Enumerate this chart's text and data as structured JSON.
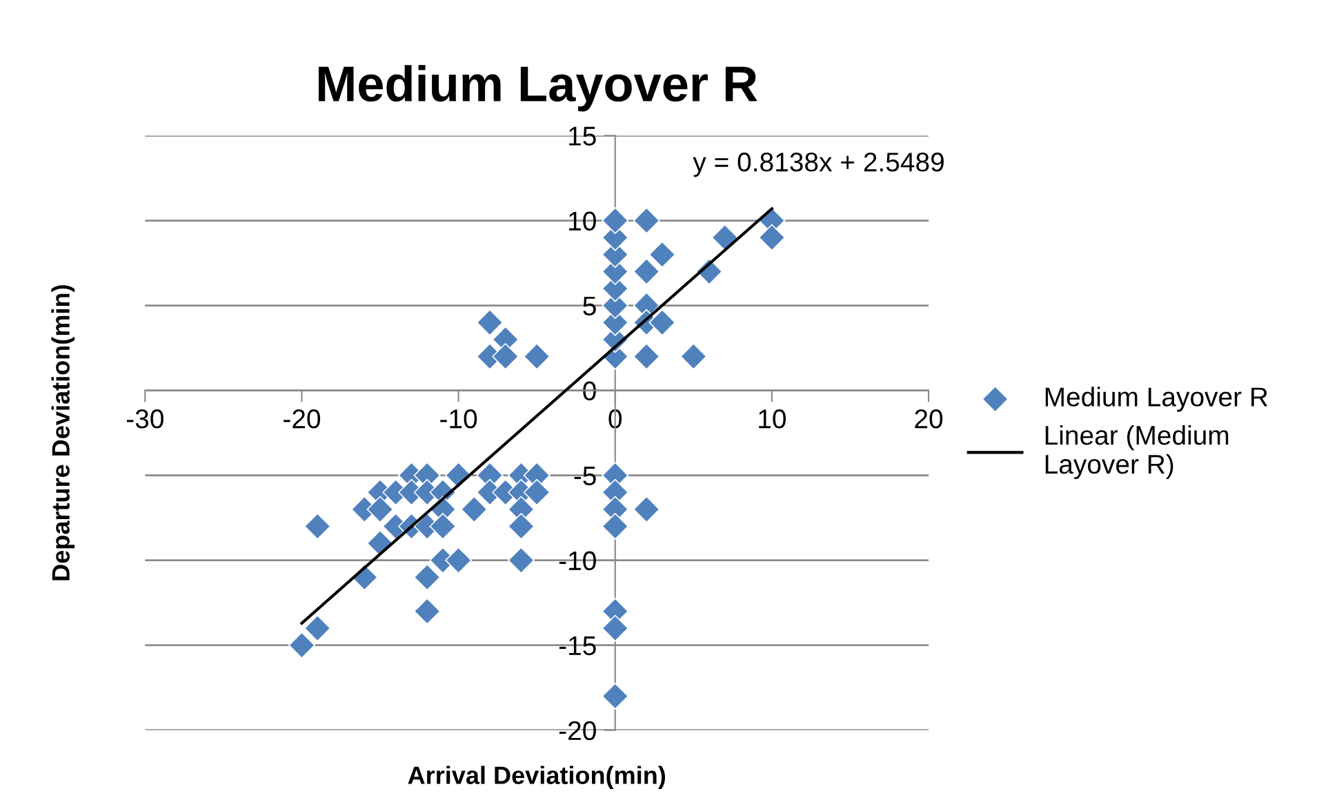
{
  "chart_data": {
    "type": "scatter",
    "title": "Medium Layover R",
    "xlabel": "Arrival Deviation(min)",
    "ylabel": "Departure Deviation(min)",
    "annotations": [
      "y = 0.8138x + 2.5489"
    ],
    "series": [
      {
        "name": "Medium Layover R",
        "color": "#4f81bd",
        "marker": "diamond",
        "x": [
          -20,
          -19,
          -19,
          -16,
          -16,
          -15,
          -15,
          -15,
          -14,
          -14,
          -13,
          -13,
          -13,
          -12,
          -12,
          -12,
          -12,
          -12,
          -11,
          -11,
          -11,
          -11,
          -10,
          -10,
          -9,
          -8,
          -8,
          -7,
          -6,
          -6,
          -6,
          -6,
          -6,
          -5,
          -5,
          0,
          0,
          0,
          0,
          0,
          0,
          0,
          2,
          -8,
          -7,
          -8,
          -7,
          -5,
          0,
          0,
          0,
          0,
          0,
          0,
          0,
          0,
          0,
          2,
          3,
          2,
          2,
          2,
          3,
          2,
          5,
          6,
          7,
          10,
          10
        ],
        "values": [
          -15,
          -14,
          -8,
          -11,
          -7,
          -6,
          -7,
          -9,
          -6,
          -8,
          -5,
          -6,
          -8,
          -5,
          -6,
          -8,
          -11,
          -13,
          -6,
          -7,
          -8,
          -10,
          -5,
          -10,
          -7,
          -5,
          -6,
          -6,
          -5,
          -6,
          -7,
          -8,
          -10,
          -5,
          -6,
          -5,
          -6,
          -7,
          -8,
          -13,
          -14,
          -18,
          -7,
          4,
          3,
          2,
          2,
          2,
          2,
          3,
          4,
          5,
          6,
          7,
          8,
          9,
          10,
          10,
          8,
          7,
          5,
          4,
          4,
          2,
          2,
          7,
          9,
          10,
          9
        ]
      },
      {
        "name": "Linear (Medium Layover R)",
        "type": "line",
        "color": "#000000",
        "line_style": "solid",
        "marker": "none",
        "x": [
          -20,
          10
        ],
        "values": [
          -13.7,
          10.7
        ]
      }
    ],
    "xlim": [
      -30,
      20
    ],
    "ylim": [
      -20,
      15
    ],
    "xticks": [
      -30,
      -20,
      -10,
      0,
      10,
      20
    ],
    "yticks": [
      -20,
      -15,
      -10,
      -5,
      0,
      5,
      10,
      15
    ],
    "grid": "y",
    "legend": "right"
  }
}
